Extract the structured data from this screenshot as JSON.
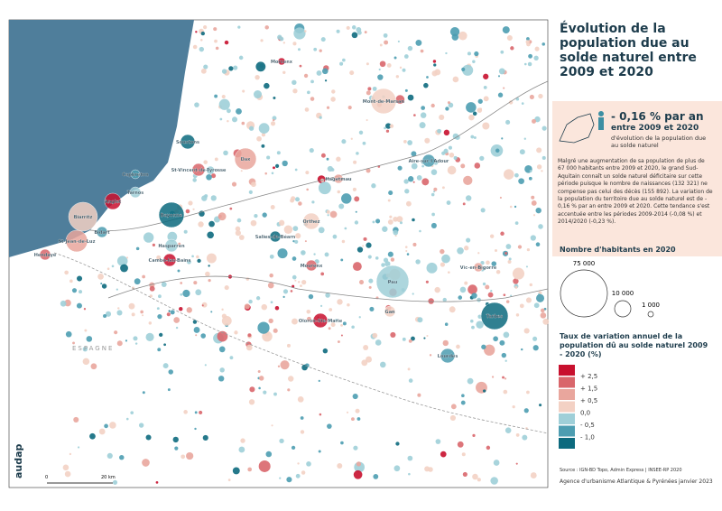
{
  "header": {
    "title": "Évolution de la population due au solde naturel entre 2009 et 2020"
  },
  "key_figure": {
    "value": "- 0,16 % par an",
    "period": "entre 2009 et 2020",
    "caption": "d'évolution de la population due au solde naturel"
  },
  "description": "Malgré une augmentation de sa population de plus de 67 000 habitants entre 2009 et 2020, le grand Sud-Aquitain connaît un solde naturel déficitaire sur cette période puisque le nombre de naissances (132 321) ne compense pas celui des décès (155 892). La variation de la population du territoire due au solde naturel est de - 0,16 % par an entre 2009 et 2020. Cette tendance s'est accentuée entre les périodes 2009-2014 (-0,08 %) et 2014/2020 (-0,23 %).",
  "size_legend": {
    "title": "Nombre d'habitants en 2020",
    "labels": [
      "75 000",
      "10 000",
      "1 000"
    ]
  },
  "color_legend": {
    "title": "Taux de variation annuel de la population dû au solde naturel 2009 - 2020 (%)",
    "colors": [
      "#c8102e",
      "#d9666b",
      "#e9a69d",
      "#f3d1c4",
      "#9fcfd8",
      "#4d9db1",
      "#0d6a7e"
    ],
    "labels": [
      "+ 2,5",
      "+ 1,5",
      "+ 0,5",
      "0,0",
      "- 0,5",
      "- 1,0"
    ]
  },
  "map": {
    "places": [
      "Morcenx",
      "Mont-de-Marsan",
      "Soustons",
      "Dax",
      "Capbreton",
      "St-Vincent-de-Tyrosse",
      "Tarnos",
      "Anglet",
      "Biarritz",
      "Bayonne",
      "St-Jean-de-Luz",
      "Bidart",
      "Hendaye",
      "Hasparren",
      "Cambo-les-Bains",
      "Orthez",
      "Salies-de-Béarn",
      "Hagetmau",
      "Aire-sur-l'Adour",
      "Mourenx",
      "Pau",
      "Oloron-Ste-Marie",
      "Gan",
      "Tarbes",
      "Vic-en-Bigorre",
      "Lourdes"
    ],
    "country": "ESPAGNE",
    "scale": [
      "0",
      "20 km"
    ]
  },
  "footer": {
    "source": "Source : IGN-BD Topo, Admin Express | INSEE-RP 2020",
    "agency": "Agence d'urbanisme Atlantique & Pyrénées",
    "date": "janvier 2023",
    "logo": "audap"
  }
}
